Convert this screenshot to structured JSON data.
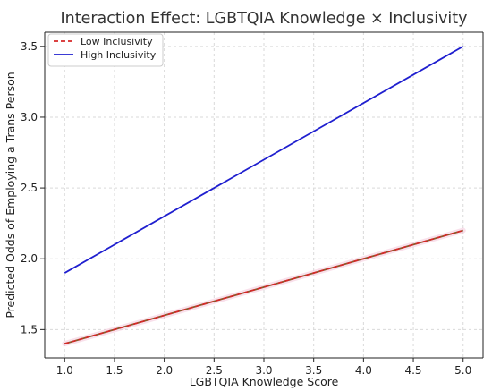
{
  "chart_data": {
    "type": "line",
    "title": "Interaction Effect: LGBTQIA Knowledge × Inclusivity",
    "xlabel": "LGBTQIA Knowledge Score",
    "ylabel": "Predicted Odds of Employing a Trans Person",
    "xlim": [
      0.8,
      5.2
    ],
    "ylim": [
      1.3,
      3.6
    ],
    "xticks": [
      "1.0",
      "1.5",
      "2.0",
      "2.5",
      "3.0",
      "3.5",
      "4.0",
      "4.5",
      "5.0"
    ],
    "yticks": [
      "1.5",
      "2.0",
      "2.5",
      "3.0",
      "3.5"
    ],
    "grid": true,
    "legend_position": "top-left",
    "series": [
      {
        "name": "Low Inclusivity",
        "x": [
          1.0,
          5.0
        ],
        "y": [
          1.4,
          2.2
        ],
        "color": "#d62728",
        "dash": true
      },
      {
        "name": "High Inclusivity",
        "x": [
          1.0,
          5.0
        ],
        "y": [
          1.9,
          3.5
        ],
        "color": "#1f1fcf",
        "dash": false
      }
    ]
  }
}
